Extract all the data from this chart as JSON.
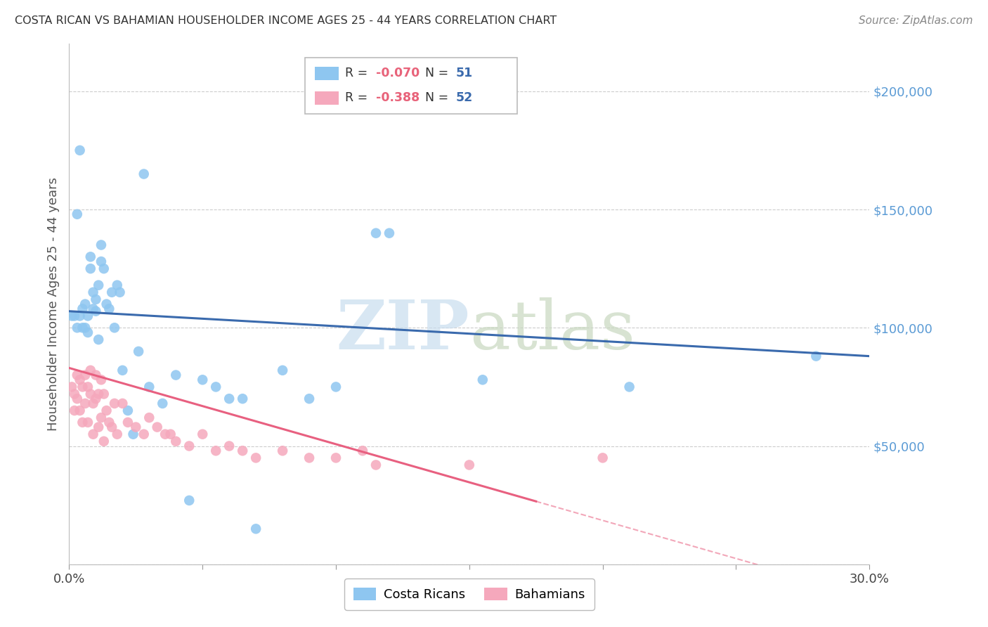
{
  "title": "COSTA RICAN VS BAHAMIAN HOUSEHOLDER INCOME AGES 25 - 44 YEARS CORRELATION CHART",
  "source": "Source: ZipAtlas.com",
  "ylabel": "Householder Income Ages 25 - 44 years",
  "xmin": 0.0,
  "xmax": 0.3,
  "ymin": 0,
  "ymax": 220000,
  "yticks": [
    0,
    50000,
    100000,
    150000,
    200000
  ],
  "ytick_labels": [
    "",
    "$50,000",
    "$100,000",
    "$150,000",
    "$200,000"
  ],
  "blue_R": "-0.070",
  "blue_N": "51",
  "pink_R": "-0.388",
  "pink_N": "52",
  "blue_color": "#8EC6F0",
  "pink_color": "#F5A8BC",
  "blue_line_color": "#3A6AAD",
  "pink_line_color": "#E86080",
  "legend_label_blue": "Costa Ricans",
  "legend_label_pink": "Bahamians",
  "blue_x": [
    0.001,
    0.002,
    0.003,
    0.003,
    0.004,
    0.004,
    0.005,
    0.005,
    0.006,
    0.006,
    0.007,
    0.007,
    0.008,
    0.008,
    0.009,
    0.009,
    0.01,
    0.01,
    0.011,
    0.011,
    0.012,
    0.012,
    0.013,
    0.014,
    0.015,
    0.016,
    0.017,
    0.018,
    0.019,
    0.02,
    0.022,
    0.024,
    0.026,
    0.028,
    0.03,
    0.035,
    0.04,
    0.045,
    0.05,
    0.055,
    0.06,
    0.065,
    0.07,
    0.08,
    0.09,
    0.1,
    0.115,
    0.12,
    0.155,
    0.21,
    0.28
  ],
  "blue_y": [
    105000,
    105000,
    148000,
    100000,
    175000,
    105000,
    108000,
    100000,
    110000,
    100000,
    105000,
    98000,
    125000,
    130000,
    108000,
    115000,
    107000,
    112000,
    95000,
    118000,
    135000,
    128000,
    125000,
    110000,
    108000,
    115000,
    100000,
    118000,
    115000,
    82000,
    65000,
    55000,
    90000,
    165000,
    75000,
    68000,
    80000,
    27000,
    78000,
    75000,
    70000,
    70000,
    15000,
    82000,
    70000,
    75000,
    140000,
    140000,
    78000,
    75000,
    88000
  ],
  "pink_x": [
    0.001,
    0.002,
    0.002,
    0.003,
    0.003,
    0.004,
    0.004,
    0.005,
    0.005,
    0.006,
    0.006,
    0.007,
    0.007,
    0.008,
    0.008,
    0.009,
    0.009,
    0.01,
    0.01,
    0.011,
    0.011,
    0.012,
    0.012,
    0.013,
    0.013,
    0.014,
    0.015,
    0.016,
    0.017,
    0.018,
    0.02,
    0.022,
    0.025,
    0.028,
    0.03,
    0.033,
    0.036,
    0.038,
    0.04,
    0.045,
    0.05,
    0.055,
    0.06,
    0.065,
    0.07,
    0.08,
    0.09,
    0.1,
    0.11,
    0.115,
    0.15,
    0.2
  ],
  "pink_y": [
    75000,
    72000,
    65000,
    80000,
    70000,
    78000,
    65000,
    75000,
    60000,
    80000,
    68000,
    75000,
    60000,
    82000,
    72000,
    68000,
    55000,
    80000,
    70000,
    72000,
    58000,
    78000,
    62000,
    72000,
    52000,
    65000,
    60000,
    58000,
    68000,
    55000,
    68000,
    60000,
    58000,
    55000,
    62000,
    58000,
    55000,
    55000,
    52000,
    50000,
    55000,
    48000,
    50000,
    48000,
    45000,
    48000,
    45000,
    45000,
    48000,
    42000,
    42000,
    45000
  ]
}
